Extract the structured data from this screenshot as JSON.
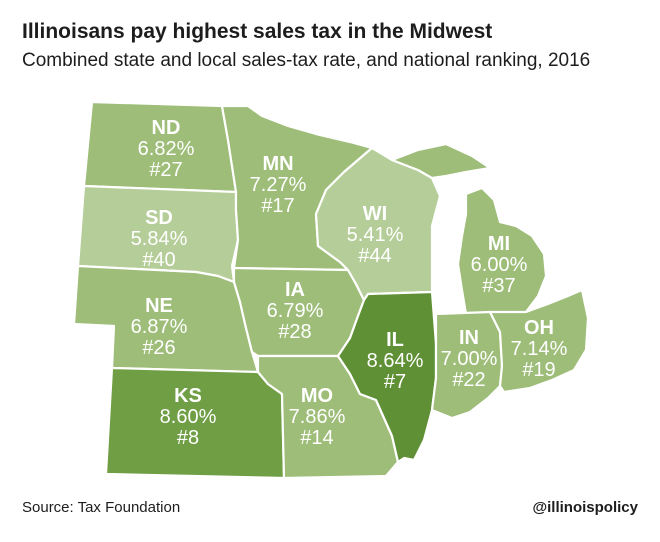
{
  "header": {
    "title": "Illinoisans pay highest sales tax in the Midwest",
    "subtitle": "Combined state and local sales-tax rate, and national ranking, 2016"
  },
  "colors": {
    "light": "#b5cd98",
    "medium": "#9dbd78",
    "dark": "#6f9e45",
    "darkest": "#5f9035"
  },
  "states": [
    {
      "abbr": "ND",
      "rate": "6.82%",
      "rank": "#27",
      "shade": "medium"
    },
    {
      "abbr": "SD",
      "rate": "5.84%",
      "rank": "#40",
      "shade": "light"
    },
    {
      "abbr": "NE",
      "rate": "6.87%",
      "rank": "#26",
      "shade": "medium"
    },
    {
      "abbr": "KS",
      "rate": "8.60%",
      "rank": "#8",
      "shade": "dark"
    },
    {
      "abbr": "MN",
      "rate": "7.27%",
      "rank": "#17",
      "shade": "medium"
    },
    {
      "abbr": "IA",
      "rate": "6.79%",
      "rank": "#28",
      "shade": "medium"
    },
    {
      "abbr": "MO",
      "rate": "7.86%",
      "rank": "#14",
      "shade": "medium"
    },
    {
      "abbr": "WI",
      "rate": "5.41%",
      "rank": "#44",
      "shade": "light"
    },
    {
      "abbr": "IL",
      "rate": "8.64%",
      "rank": "#7",
      "shade": "darkest"
    },
    {
      "abbr": "MI",
      "rate": "6.00%",
      "rank": "#37",
      "shade": "medium"
    },
    {
      "abbr": "IN",
      "rate": "7.00%",
      "rank": "#22",
      "shade": "medium"
    },
    {
      "abbr": "OH",
      "rate": "7.14%",
      "rank": "#19",
      "shade": "medium"
    }
  ],
  "footer": {
    "source": "Source: Tax Foundation",
    "handle": "@illinoispolicy"
  }
}
